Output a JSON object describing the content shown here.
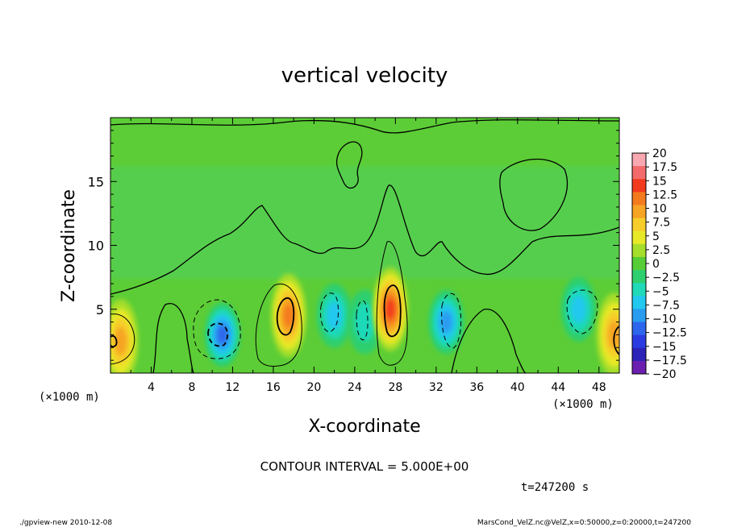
{
  "chart_data": {
    "type": "heatmap",
    "title": "vertical velocity",
    "xlabel": "X-coordinate",
    "ylabel": "Z-coordinate",
    "x_unit_label": "(×1000 m)",
    "y_unit_label": "(×1000 m)",
    "xlim": [
      0,
      50
    ],
    "ylim": [
      0,
      20
    ],
    "x_ticks": [
      4,
      8,
      12,
      16,
      20,
      24,
      28,
      32,
      36,
      40,
      44,
      48
    ],
    "y_ticks": [
      5,
      10,
      15
    ],
    "colorbar": {
      "labels": [
        "20",
        "17.5",
        "15",
        "12.5",
        "10",
        "7.5",
        "5",
        "2.5",
        "0",
        "−2.5",
        "−5",
        "−7.5",
        "−10",
        "−12.5",
        "−15",
        "−17.5",
        "−20"
      ],
      "colors": [
        "#f9a7b0",
        "#f36a6a",
        "#f23a1e",
        "#f47a1e",
        "#f6a424",
        "#f6cd2a",
        "#e7e928",
        "#a6de2c",
        "#56cd36",
        "#2ecf6e",
        "#1fd9b8",
        "#23c8ee",
        "#2a9cf0",
        "#2d66ec",
        "#2a3ce1",
        "#2a22b9",
        "#6b1fb0"
      ]
    },
    "features": [
      {
        "type": "updraft",
        "x": 1,
        "z": 2.5,
        "peak": 10
      },
      {
        "type": "downdraft",
        "x": 11,
        "z": 3,
        "peak": -12.5
      },
      {
        "type": "updraft",
        "x": 17.5,
        "z": 4.5,
        "peak": 12.5
      },
      {
        "type": "downdraft",
        "x": 22,
        "z": 4.5,
        "peak": -7.5
      },
      {
        "type": "downdraft",
        "x": 25,
        "z": 4,
        "peak": -5
      },
      {
        "type": "updraft",
        "x": 27.5,
        "z": 5,
        "peak": 15
      },
      {
        "type": "downdraft",
        "x": 33,
        "z": 4,
        "peak": -10
      },
      {
        "type": "downdraft",
        "x": 46,
        "z": 5,
        "peak": -7.5
      },
      {
        "type": "updraft",
        "x": 49.5,
        "z": 3,
        "peak": 10
      }
    ],
    "annotations": {
      "contour_interval": "CONTOUR INTERVAL = 5.000E+00",
      "time": "t=247200 s"
    }
  },
  "footer": {
    "left": "./gpview-new   2010-12-08",
    "right": "MarsCond_VelZ.nc@VelZ,x=0:50000,z=0:20000,t=247200"
  }
}
